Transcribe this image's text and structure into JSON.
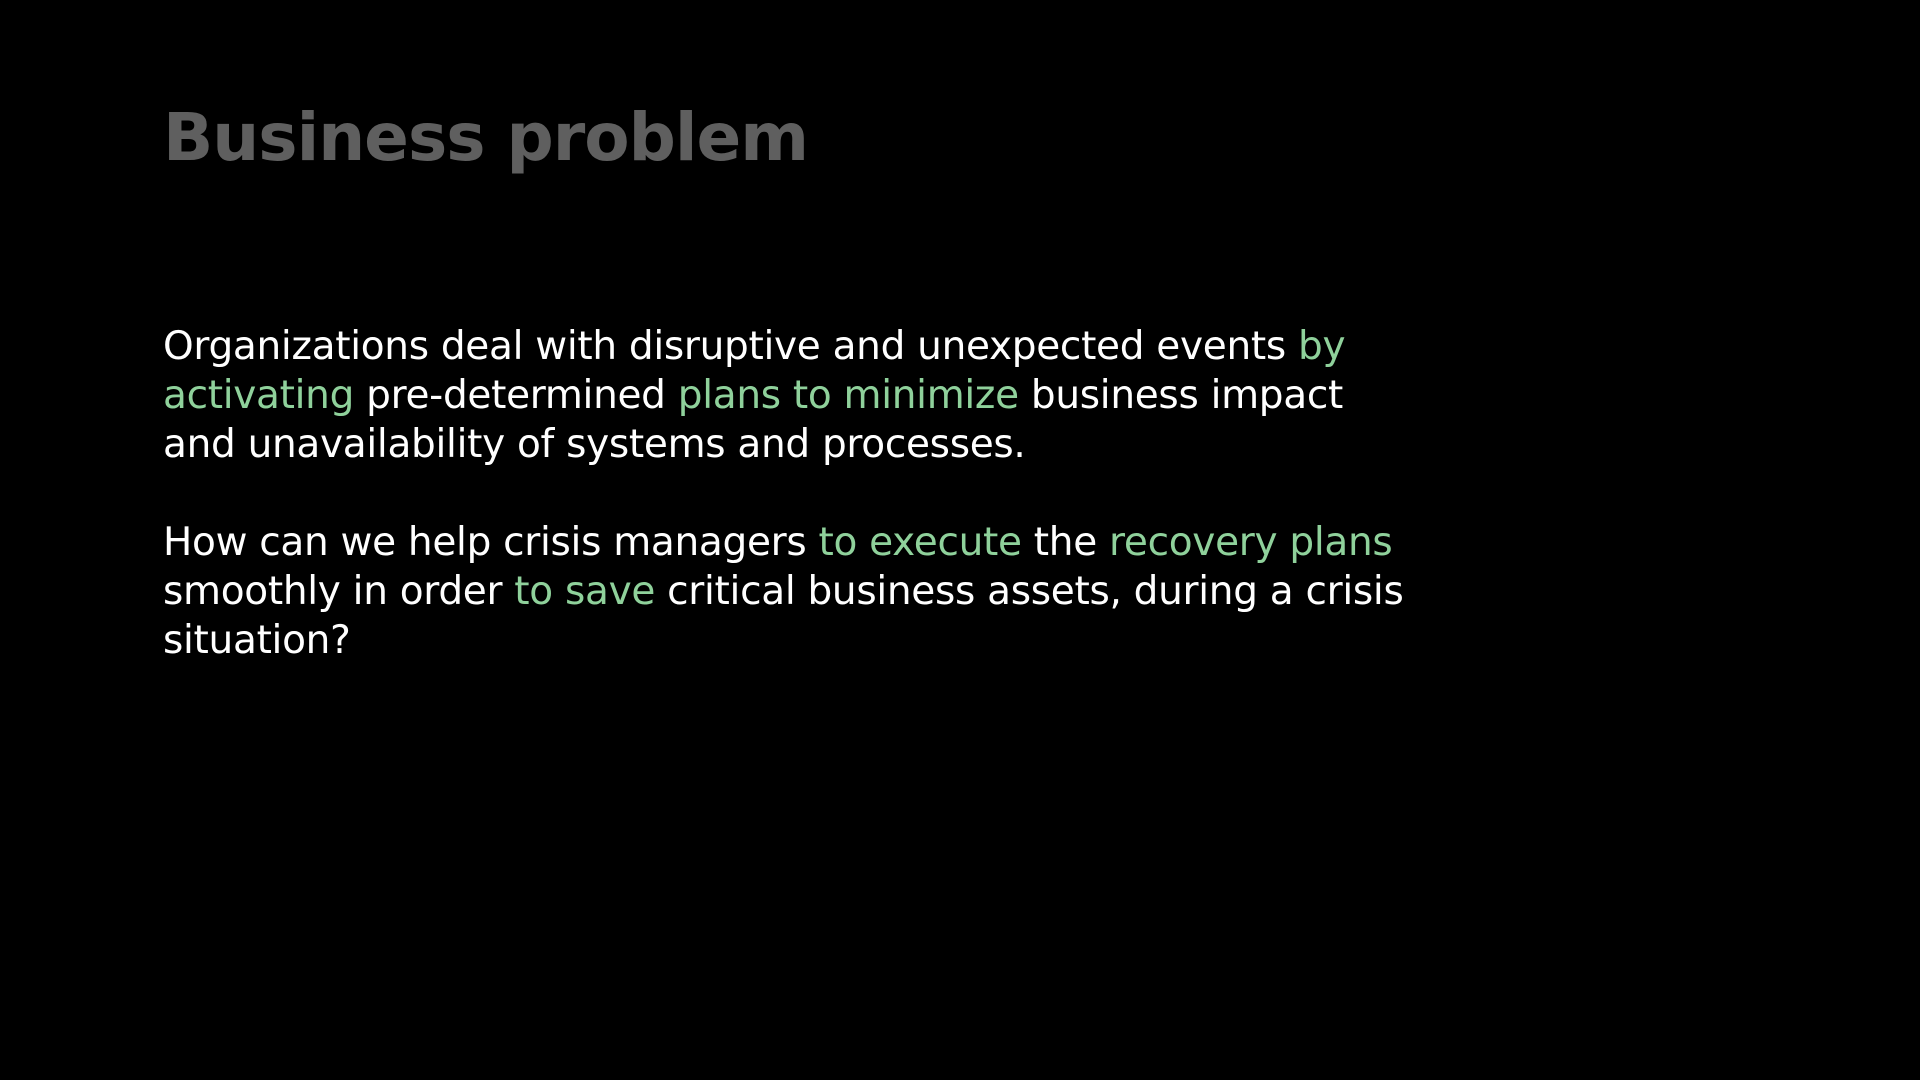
{
  "slide": {
    "title": "Business problem",
    "accent_color": "#8fd19b",
    "text_color": "#ffffff",
    "title_color": "#5f5f5f",
    "background_color": "#000000",
    "paragraphs": [
      {
        "segments": [
          {
            "text": "Organizations deal with disruptive and unexpected events ",
            "highlight": false
          },
          {
            "text": "by activating",
            "highlight": true
          },
          {
            "text": " pre-determined ",
            "highlight": false
          },
          {
            "text": "plans to minimize",
            "highlight": true
          },
          {
            "text": " business impact and unavailability of systems and processes.",
            "highlight": false
          }
        ]
      },
      {
        "segments": [
          {
            "text": "How can we help crisis managers ",
            "highlight": false
          },
          {
            "text": "to execute",
            "highlight": true
          },
          {
            "text": " the ",
            "highlight": false
          },
          {
            "text": "recovery plans",
            "highlight": true
          },
          {
            "text": " smoothly in order ",
            "highlight": false
          },
          {
            "text": "to save",
            "highlight": true
          },
          {
            "text": " critical business assets, during a crisis situation?",
            "highlight": false
          }
        ]
      }
    ]
  }
}
